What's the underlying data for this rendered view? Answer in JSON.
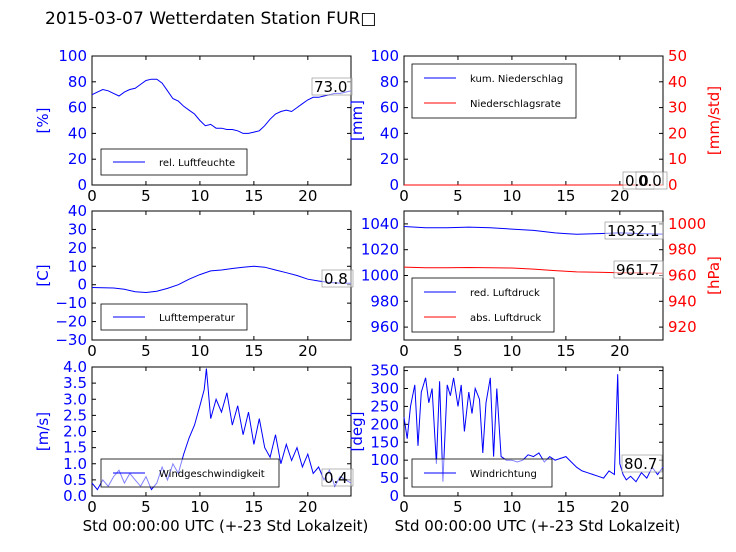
{
  "title": "2015-03-07 Wetterdaten Station FUR□",
  "chart_data": [
    {
      "id": "humidity",
      "type": "line",
      "xlim": [
        0,
        24
      ],
      "xticks": [
        "0",
        "5",
        "10",
        "15",
        "20"
      ],
      "ylim": [
        0,
        100
      ],
      "yticks": [
        "0",
        "20",
        "40",
        "60",
        "80",
        "100"
      ],
      "ylabel": "[%]",
      "legend": [
        "rel. Luftfeuchte"
      ],
      "legend_position": "lower-left",
      "annotations": [
        "73.0"
      ],
      "series": [
        {
          "name": "rel. Luftfeuchte",
          "color": "#0000ff",
          "x": [
            0,
            0.5,
            1,
            1.5,
            2,
            2.5,
            3,
            3.5,
            4,
            4.5,
            5,
            5.5,
            6,
            6.5,
            7,
            7.5,
            8,
            8.5,
            9,
            9.5,
            10,
            10.5,
            11,
            11.5,
            12,
            12.5,
            13,
            13.5,
            14,
            14.5,
            15,
            15.5,
            16,
            16.5,
            17,
            17.5,
            18,
            18.5,
            19,
            19.5,
            20,
            20.5,
            21,
            21.5,
            22,
            22.5,
            23,
            23.5,
            24
          ],
          "y": [
            70,
            72,
            74,
            73,
            71,
            69,
            72,
            74,
            75,
            78,
            81,
            82,
            82,
            79,
            73,
            67,
            65,
            61,
            58,
            55,
            50,
            46,
            47,
            44,
            44,
            43,
            43,
            42,
            40,
            40,
            41,
            42,
            46,
            51,
            55,
            57,
            58,
            57,
            60,
            63,
            66,
            68,
            68,
            69,
            70,
            71,
            71,
            72,
            73
          ]
        }
      ]
    },
    {
      "id": "precip",
      "type": "line",
      "xlim": [
        0,
        24
      ],
      "xticks": [
        "0",
        "5",
        "10",
        "15",
        "20"
      ],
      "ylim": [
        0,
        100
      ],
      "yticks": [
        "0",
        "20",
        "40",
        "60",
        "80",
        "100"
      ],
      "ylabel": "[mm]",
      "y2lim": [
        0,
        50
      ],
      "y2ticks": [
        "0",
        "10",
        "20",
        "30",
        "40",
        "50"
      ],
      "y2label": "[mm/std]",
      "legend": [
        "kum. Niederschlag",
        "Niederschlagsrate"
      ],
      "legend_position": "upper-left",
      "annotations": [
        "0.0",
        "0.0"
      ],
      "series": [
        {
          "name": "kum. Niederschlag",
          "color": "#0000ff",
          "axis": "left",
          "x": [
            0,
            24
          ],
          "y": [
            0,
            0
          ]
        },
        {
          "name": "Niederschlagsrate",
          "color": "#ff0000",
          "axis": "right",
          "x": [
            0,
            24
          ],
          "y": [
            0,
            0
          ]
        }
      ]
    },
    {
      "id": "temperature",
      "type": "line",
      "xlim": [
        0,
        24
      ],
      "xticks": [
        "0",
        "5",
        "10",
        "15",
        "20"
      ],
      "ylim": [
        -30,
        40
      ],
      "yticks": [
        "−30",
        "−20",
        "−10",
        "0",
        "10",
        "20",
        "30",
        "40"
      ],
      "ylabel": "[C]",
      "legend": [
        "Lufttemperatur"
      ],
      "legend_position": "lower-left",
      "annotations": [
        "0.8"
      ],
      "series": [
        {
          "name": "Lufttemperatur",
          "color": "#0000ff",
          "x": [
            0,
            1,
            2,
            3,
            4,
            5,
            6,
            7,
            8,
            9,
            10,
            11,
            12,
            13,
            14,
            15,
            16,
            17,
            18,
            19,
            20,
            21,
            22,
            23,
            24
          ],
          "y": [
            -1.5,
            -1.6,
            -1.8,
            -2.5,
            -3.8,
            -4.2,
            -3.5,
            -2,
            0,
            3,
            5.5,
            7.5,
            8,
            8.8,
            9.5,
            10,
            9.5,
            8,
            6.5,
            5,
            3,
            2,
            1.2,
            0.9,
            0.8
          ]
        }
      ]
    },
    {
      "id": "pressure",
      "type": "line",
      "xlim": [
        0,
        24
      ],
      "xticks": [
        "0",
        "5",
        "10",
        "15",
        "20"
      ],
      "ylim": [
        950,
        1050
      ],
      "yticks": [
        "960",
        "980",
        "1000",
        "1020",
        "1040"
      ],
      "y2lim": [
        910,
        1010
      ],
      "y2ticks": [
        "920",
        "940",
        "960",
        "980",
        "1000"
      ],
      "y2label": "[hPa]",
      "legend": [
        "red. Luftdruck",
        "abs. Luftdruck"
      ],
      "legend_position": "lower-left",
      "annotations": [
        "1032.1",
        "961.7"
      ],
      "series": [
        {
          "name": "red. Luftdruck",
          "color": "#0000ff",
          "axis": "left",
          "x": [
            0,
            2,
            4,
            6,
            8,
            10,
            12,
            14,
            15,
            16,
            18,
            20,
            22,
            24
          ],
          "y": [
            1038,
            1037,
            1037,
            1037.5,
            1037,
            1036,
            1035,
            1033,
            1032.5,
            1032,
            1032.5,
            1033,
            1032.5,
            1032.1
          ]
        },
        {
          "name": "abs. Luftdruck",
          "color": "#ff0000",
          "axis": "right",
          "x": [
            0,
            2,
            4,
            6,
            8,
            10,
            12,
            14,
            16,
            18,
            20,
            22,
            24
          ],
          "y": [
            966.5,
            966,
            966,
            966.2,
            966,
            965.8,
            965,
            963.8,
            962.8,
            962.5,
            962.2,
            962,
            961.7
          ]
        }
      ]
    },
    {
      "id": "wind_speed",
      "type": "line",
      "xlim": [
        0,
        24
      ],
      "xticks": [
        "0",
        "5",
        "10",
        "15",
        "20"
      ],
      "ylim": [
        0,
        4
      ],
      "yticks": [
        "0.0",
        "0.5",
        "1.0",
        "1.5",
        "2.0",
        "2.5",
        "3.0",
        "3.5",
        "4.0"
      ],
      "ylabel": "[m/s]",
      "xlabel": "Std 00:00:00 UTC (+-23 Std Lokalzeit)",
      "legend": [
        "Windgeschwindigkeit"
      ],
      "legend_position": "lower-left",
      "annotations": [
        "0.4"
      ],
      "series": [
        {
          "name": "Windgeschwindigkeit",
          "color": "#0000ff",
          "x": [
            0,
            0.5,
            1,
            1.5,
            2,
            2.5,
            3,
            3.5,
            4,
            4.5,
            5,
            5.5,
            6,
            6.5,
            7,
            7.5,
            8,
            8.5,
            9,
            9.5,
            10,
            10.4,
            10.6,
            11,
            11.5,
            12,
            12.5,
            13,
            13.5,
            14,
            14.5,
            15,
            15.5,
            16,
            16.5,
            17,
            17.5,
            18,
            18.5,
            19,
            19.5,
            20,
            20.5,
            21,
            21.5,
            22,
            22.5,
            23,
            23.5,
            24
          ],
          "y": [
            0.4,
            0.2,
            0.5,
            0.3,
            0.6,
            0.8,
            0.4,
            0.7,
            0.5,
            0.3,
            0.6,
            0.2,
            0.4,
            0.9,
            0.5,
            1.0,
            0.7,
            1.3,
            1.8,
            2.2,
            2.8,
            3.3,
            3.95,
            2.4,
            3.0,
            2.6,
            3.2,
            2.2,
            2.8,
            1.9,
            2.6,
            1.6,
            2.4,
            1.5,
            1.2,
            1.9,
            1.0,
            1.6,
            1.1,
            1.5,
            0.9,
            1.3,
            0.7,
            0.9,
            0.5,
            0.8,
            0.3,
            0.6,
            0.5,
            0.4
          ]
        }
      ]
    },
    {
      "id": "wind_dir",
      "type": "line",
      "xlim": [
        0,
        24
      ],
      "xticks": [
        "0",
        "5",
        "10",
        "15",
        "20"
      ],
      "ylim": [
        0,
        360
      ],
      "yticks": [
        "0",
        "50",
        "100",
        "150",
        "200",
        "250",
        "300",
        "350"
      ],
      "ylabel": "[deg]",
      "xlabel": "Std 00:00:00 UTC (+-23 Std Lokalzeit)",
      "legend": [
        "Windrichtung"
      ],
      "legend_position": "lower-left",
      "annotations": [
        "80.7"
      ],
      "series": [
        {
          "name": "Windrichtung",
          "color": "#0000ff",
          "x": [
            0,
            0.3,
            0.6,
            1,
            1.3,
            1.6,
            2,
            2.3,
            2.6,
            3,
            3.3,
            3.6,
            4,
            4.3,
            4.6,
            5,
            5.3,
            5.6,
            6,
            6.3,
            6.6,
            7,
            7.3,
            7.6,
            8,
            8.3,
            8.6,
            9,
            9.5,
            10,
            10.5,
            11,
            11.5,
            12,
            12.5,
            13,
            13.5,
            14,
            14.5,
            15,
            15.5,
            16,
            16.5,
            17,
            17.5,
            18,
            18.5,
            19,
            19.5,
            19.8,
            20,
            20.3,
            20.6,
            21,
            21.5,
            22,
            22.5,
            23,
            23.5,
            24
          ],
          "y": [
            220,
            160,
            250,
            310,
            140,
            290,
            330,
            260,
            300,
            90,
            320,
            40,
            310,
            280,
            330,
            250,
            310,
            180,
            290,
            230,
            300,
            270,
            120,
            260,
            330,
            110,
            300,
            110,
            100,
            100,
            95,
            100,
            115,
            110,
            120,
            95,
            110,
            100,
            105,
            110,
            95,
            80,
            70,
            65,
            60,
            55,
            50,
            70,
            60,
            340,
            90,
            60,
            45,
            55,
            40,
            65,
            50,
            80,
            60,
            80.7
          ]
        }
      ]
    }
  ]
}
